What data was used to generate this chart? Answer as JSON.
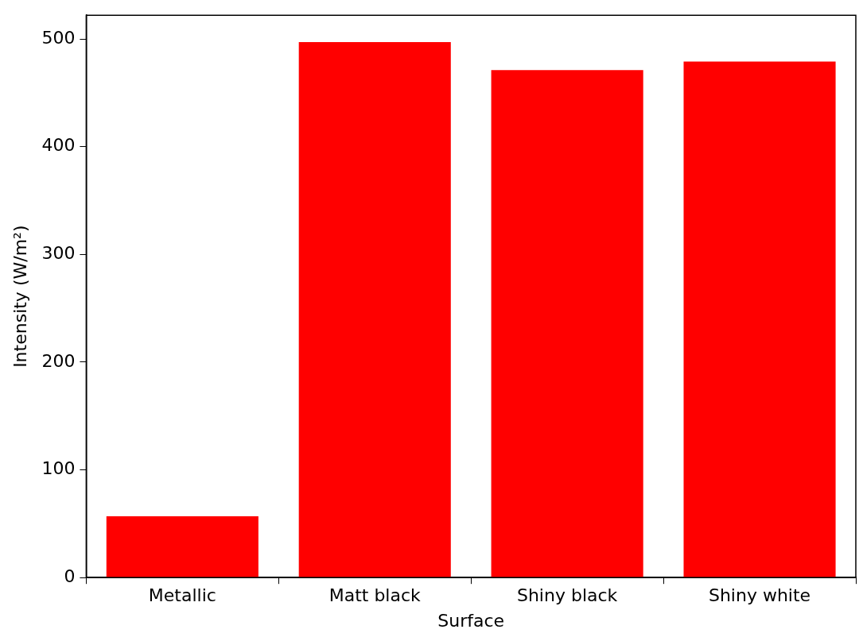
{
  "chart_data": {
    "type": "bar",
    "xlabel": "Surface",
    "ylabel": "Intensity (W/m²)",
    "categories": [
      "Metallic",
      "Matt black",
      "Shiny black",
      "Shiny white"
    ],
    "values": [
      57,
      497,
      471,
      479
    ],
    "color": "#ff0000",
    "ylim": [
      0,
      522
    ],
    "yticks": [
      0,
      100,
      200,
      300,
      400,
      500
    ],
    "grid": false
  }
}
